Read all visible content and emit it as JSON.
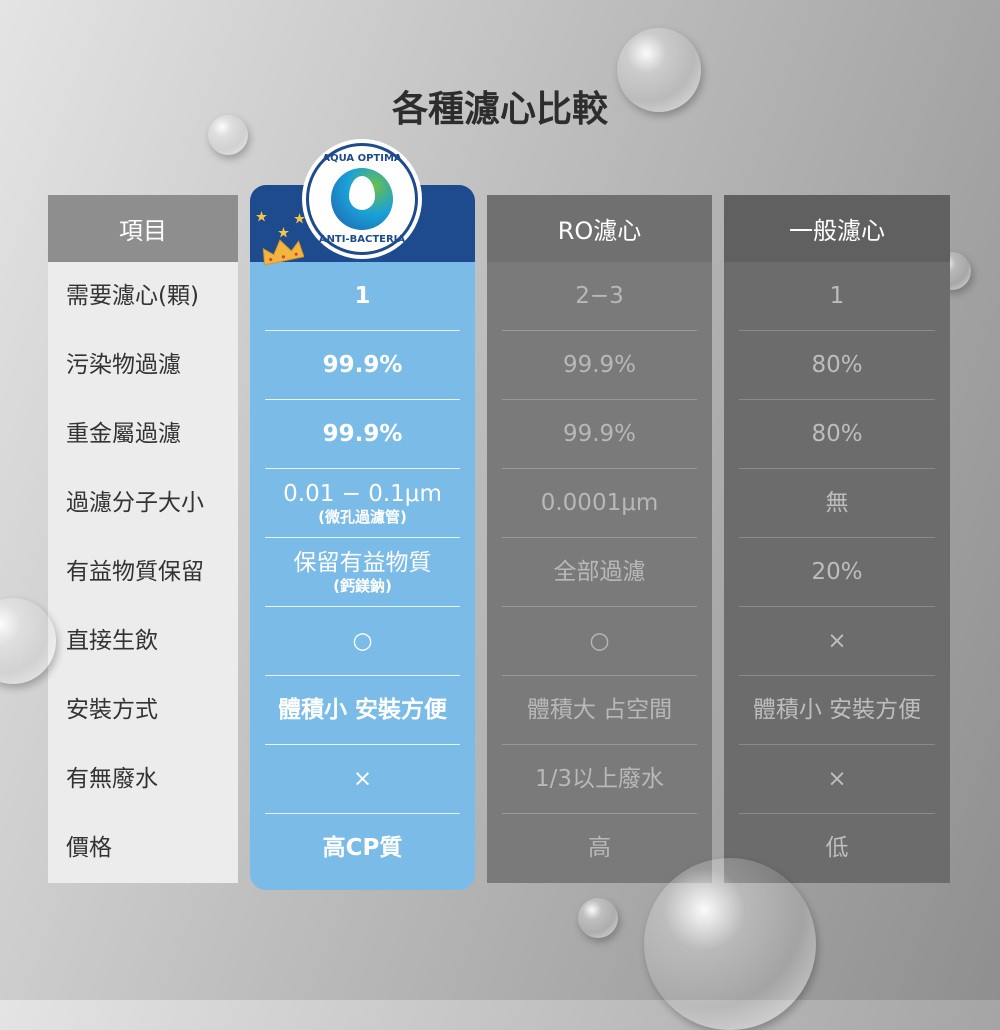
{
  "title": "各種濾心比較",
  "logo": {
    "top_text": "AQUA OPTIMA",
    "bottom_text": "ANTI-BACTERIA"
  },
  "colors": {
    "featured_header": "#1e4a8e",
    "featured_body": "#7bbbe8"
  },
  "columns": [
    {
      "header": "項目",
      "rows": [
        "需要濾心(顆)",
        "污染物過濾",
        "重金屬過濾",
        "過濾分子大小",
        "有益物質保留",
        "直接生飲",
        "安裝方式",
        "有無廢水",
        "價格"
      ]
    },
    {
      "header": "",
      "rows": [
        {
          "main": "1"
        },
        {
          "main": "99.9%"
        },
        {
          "main": "99.9%"
        },
        {
          "main": "0.01 − 0.1μm",
          "sub": "(微孔過濾管)"
        },
        {
          "main": "保留有益物質",
          "sub": "(鈣鎂鈉)"
        },
        {
          "main": "○"
        },
        {
          "main": "體積小 安裝方便"
        },
        {
          "main": "×"
        },
        {
          "main": "高CP質"
        }
      ]
    },
    {
      "header": "RO濾心",
      "rows": [
        "2−3",
        "99.9%",
        "99.9%",
        "0.0001μm",
        "全部過濾",
        "○",
        "體積大 占空間",
        "1/3以上廢水",
        "高"
      ]
    },
    {
      "header": "一般濾心",
      "rows": [
        "1",
        "80%",
        "80%",
        "無",
        "20%",
        "×",
        "體積小 安裝方便",
        "×",
        "低"
      ]
    }
  ]
}
